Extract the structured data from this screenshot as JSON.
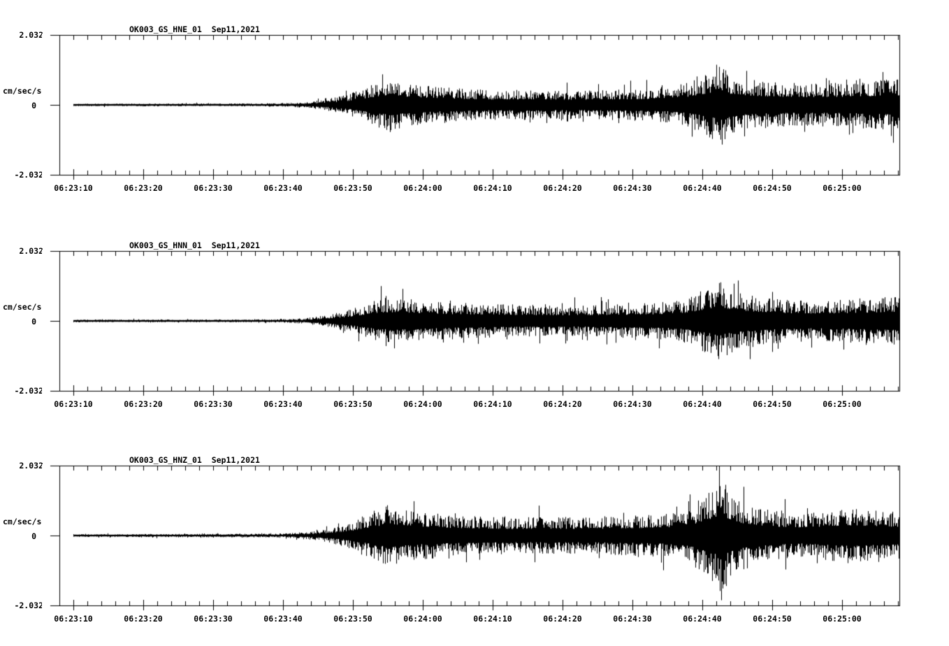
{
  "page": {
    "background_color": "#ffffff",
    "trace_color": "#000000"
  },
  "chart_data": [
    {
      "type": "line",
      "kind": "seismogram",
      "title": "OK003_GS_HNE_01  Sep11,2021",
      "station": "OK003_GS_HNE_01",
      "date": "Sep11,2021",
      "ylabel": "cm/sec/sec",
      "ytick_labels": [
        "2.032",
        "0",
        "-2.032"
      ],
      "ylim": [
        -2.032,
        2.032
      ],
      "xticks": [
        "06:23:10",
        "06:23:20",
        "06:23:30",
        "06:23:40",
        "06:23:50",
        "06:24:00",
        "06:24:10",
        "06:24:20",
        "06:24:30",
        "06:24:40",
        "06:24:50",
        "06:25:00"
      ],
      "x_major_interval_s": 10,
      "x_minor_interval_s": 2,
      "x_axis_start": "06:23:08",
      "x_axis_span_s": 120.2,
      "grid": false,
      "legend": "none",
      "envelope_amp_cm_s2": [
        [
          2,
          0.04
        ],
        [
          25,
          0.04
        ],
        [
          32,
          0.05
        ],
        [
          35,
          0.08
        ],
        [
          38,
          0.16
        ],
        [
          40,
          0.24
        ],
        [
          42,
          0.37
        ],
        [
          44,
          0.53
        ],
        [
          46,
          0.69
        ],
        [
          47.5,
          0.81
        ],
        [
          49,
          0.69
        ],
        [
          51,
          0.61
        ],
        [
          54,
          0.53
        ],
        [
          58,
          0.47
        ],
        [
          62,
          0.43
        ],
        [
          68,
          0.45
        ],
        [
          74,
          0.41
        ],
        [
          80,
          0.45
        ],
        [
          84,
          0.47
        ],
        [
          87,
          0.51
        ],
        [
          90,
          0.65
        ],
        [
          92,
          0.85
        ],
        [
          94.5,
          1.14
        ],
        [
          96,
          0.89
        ],
        [
          98,
          0.77
        ],
        [
          101,
          0.69
        ],
        [
          105,
          0.61
        ],
        [
          110,
          0.63
        ],
        [
          114,
          0.67
        ],
        [
          118,
          0.73
        ],
        [
          120.2,
          0.77
        ]
      ]
    },
    {
      "type": "line",
      "kind": "seismogram",
      "title": "OK003_GS_HNN_01  Sep11,2021",
      "station": "OK003_GS_HNN_01",
      "date": "Sep11,2021",
      "ylabel": "cm/sec/sec",
      "ytick_labels": [
        "2.032",
        "0",
        "-2.032"
      ],
      "ylim": [
        -2.032,
        2.032
      ],
      "xticks": [
        "06:23:10",
        "06:23:20",
        "06:23:30",
        "06:23:40",
        "06:23:50",
        "06:24:00",
        "06:24:10",
        "06:24:20",
        "06:24:30",
        "06:24:40",
        "06:24:50",
        "06:25:00"
      ],
      "x_major_interval_s": 10,
      "x_minor_interval_s": 2,
      "x_axis_start": "06:23:08",
      "x_axis_span_s": 120.2,
      "grid": false,
      "legend": "none",
      "envelope_amp_cm_s2": [
        [
          2,
          0.04
        ],
        [
          25,
          0.04
        ],
        [
          32,
          0.05
        ],
        [
          35,
          0.08
        ],
        [
          38,
          0.16
        ],
        [
          40,
          0.26
        ],
        [
          42,
          0.37
        ],
        [
          44,
          0.53
        ],
        [
          46,
          0.65
        ],
        [
          48,
          0.71
        ],
        [
          50,
          0.67
        ],
        [
          53,
          0.59
        ],
        [
          57,
          0.53
        ],
        [
          62,
          0.49
        ],
        [
          68,
          0.47
        ],
        [
          74,
          0.45
        ],
        [
          80,
          0.49
        ],
        [
          85,
          0.53
        ],
        [
          88,
          0.57
        ],
        [
          90,
          0.69
        ],
        [
          92,
          0.89
        ],
        [
          94.5,
          1.14
        ],
        [
          96,
          0.93
        ],
        [
          98,
          0.81
        ],
        [
          101,
          0.69
        ],
        [
          105,
          0.61
        ],
        [
          109,
          0.59
        ],
        [
          113,
          0.63
        ],
        [
          117,
          0.69
        ],
        [
          120.2,
          0.73
        ]
      ]
    },
    {
      "type": "line",
      "kind": "seismogram",
      "title": "OK003_GS_HNZ_01  Sep11,2021",
      "station": "OK003_GS_HNZ_01",
      "date": "Sep11,2021",
      "ylabel": "cm/sec/sec",
      "ytick_labels": [
        "2.032",
        "0",
        "-2.032"
      ],
      "ylim": [
        -2.032,
        2.032
      ],
      "xticks": [
        "06:23:10",
        "06:23:20",
        "06:23:30",
        "06:23:40",
        "06:23:50",
        "06:24:00",
        "06:24:10",
        "06:24:20",
        "06:24:30",
        "06:24:40",
        "06:24:50",
        "06:25:00"
      ],
      "x_major_interval_s": 10,
      "x_minor_interval_s": 2,
      "x_axis_start": "06:23:08",
      "x_axis_span_s": 120.2,
      "grid": false,
      "legend": "none",
      "envelope_amp_cm_s2": [
        [
          2,
          0.04
        ],
        [
          25,
          0.05
        ],
        [
          32,
          0.06
        ],
        [
          35,
          0.1
        ],
        [
          38,
          0.18
        ],
        [
          40,
          0.28
        ],
        [
          42,
          0.41
        ],
        [
          44,
          0.61
        ],
        [
          46,
          0.81
        ],
        [
          47.5,
          0.93
        ],
        [
          49,
          0.81
        ],
        [
          52,
          0.69
        ],
        [
          56,
          0.61
        ],
        [
          60,
          0.57
        ],
        [
          65,
          0.53
        ],
        [
          70,
          0.55
        ],
        [
          75,
          0.53
        ],
        [
          80,
          0.57
        ],
        [
          85,
          0.61
        ],
        [
          88,
          0.69
        ],
        [
          90,
          0.81
        ],
        [
          92,
          1.12
        ],
        [
          94,
          1.52
        ],
        [
          94.8,
          2.03
        ],
        [
          95.5,
          1.42
        ],
        [
          97,
          1.06
        ],
        [
          99,
          0.89
        ],
        [
          102,
          0.73
        ],
        [
          106,
          0.63
        ],
        [
          109,
          0.71
        ],
        [
          112,
          0.81
        ],
        [
          115,
          0.79
        ],
        [
          118,
          0.73
        ],
        [
          120.2,
          0.71
        ]
      ]
    }
  ]
}
